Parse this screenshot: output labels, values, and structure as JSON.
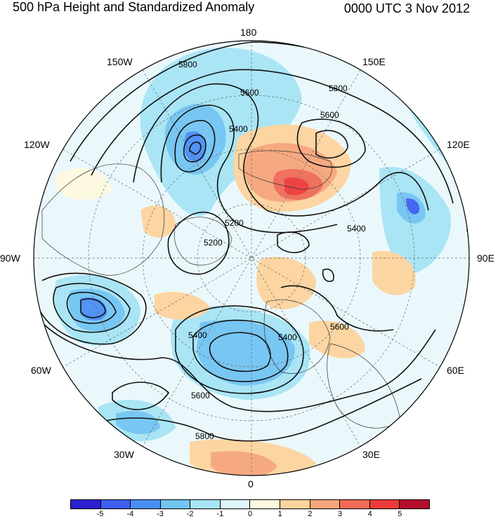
{
  "header": {
    "title": "500 hPa Height and Standardized Anomaly",
    "time": "0000 UTC 3 Nov 2012"
  },
  "lon_labels": [
    {
      "id": "180",
      "text": "180"
    },
    {
      "id": "150e",
      "text": "150E"
    },
    {
      "id": "120e",
      "text": "120E"
    },
    {
      "id": "90e",
      "text": "90E"
    },
    {
      "id": "60e",
      "text": "60E"
    },
    {
      "id": "30e",
      "text": "30E"
    },
    {
      "id": "0",
      "text": "0"
    },
    {
      "id": "30w",
      "text": "30W"
    },
    {
      "id": "60w",
      "text": "60W"
    },
    {
      "id": "90w",
      "text": "90W"
    },
    {
      "id": "120w",
      "text": "120W"
    },
    {
      "id": "150w",
      "text": "150W"
    }
  ],
  "contour_labels": [
    "5800",
    "5600",
    "5400",
    "5200",
    "5400",
    "5600",
    "5800",
    "5400",
    "5600",
    "5800",
    "5400",
    "5200",
    "5600"
  ],
  "colorbar": {
    "colors": [
      "#2b1fd0",
      "#3e5ef0",
      "#4a8ef5",
      "#72c4f3",
      "#a6e4f5",
      "#ddf7fb",
      "#fff9df",
      "#fdd49e",
      "#f7a57a",
      "#f06a57",
      "#ee3a3a",
      "#b20d2a"
    ],
    "ticks": [
      "-5",
      "-4",
      "-3",
      "-2",
      "-1",
      "0",
      "1",
      "2",
      "3",
      "4",
      "5"
    ]
  }
}
